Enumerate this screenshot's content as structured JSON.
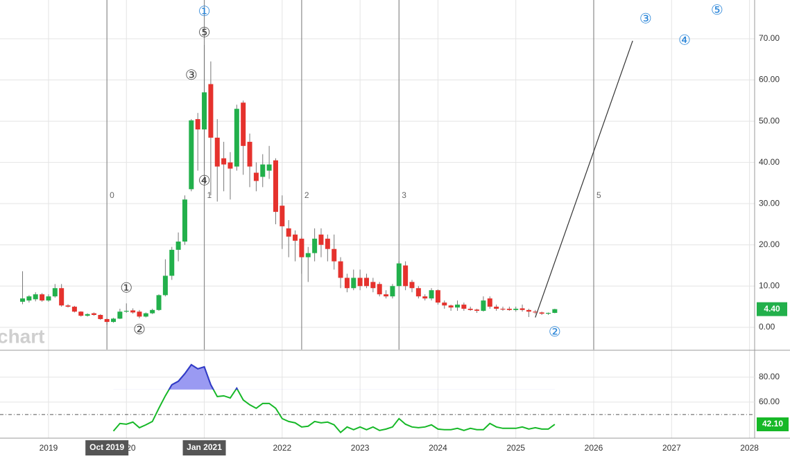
{
  "chart_data": [
    {
      "type": "candlestick",
      "x": [
        "2018-09",
        "2018-10",
        "2018-11",
        "2018-12",
        "2019-01",
        "2019-02",
        "2019-03",
        "2019-04",
        "2019-05",
        "2019-06",
        "2019-07",
        "2019-08",
        "2019-09",
        "2019-10",
        "2019-11",
        "2019-12",
        "2020-01",
        "2020-02",
        "2020-03",
        "2020-04",
        "2020-05",
        "2020-06",
        "2020-07",
        "2020-08",
        "2020-09",
        "2020-10",
        "2020-11",
        "2020-12",
        "2021-01",
        "2021-02",
        "2021-03",
        "2021-04",
        "2021-05",
        "2021-06",
        "2021-07",
        "2021-08",
        "2021-09",
        "2021-10",
        "2021-11",
        "2021-12",
        "2022-01",
        "2022-02",
        "2022-03",
        "2022-04",
        "2022-05",
        "2022-06",
        "2022-07",
        "2022-08",
        "2022-09",
        "2022-10",
        "2022-11",
        "2022-12",
        "2023-01",
        "2023-02",
        "2023-03",
        "2023-04",
        "2023-05",
        "2023-06",
        "2023-07",
        "2023-08",
        "2023-09",
        "2023-10",
        "2023-11",
        "2023-12",
        "2024-01",
        "2024-02",
        "2024-03",
        "2024-04",
        "2024-05",
        "2024-06",
        "2024-07",
        "2024-08",
        "2024-09",
        "2024-10",
        "2024-11",
        "2024-12",
        "2025-01",
        "2025-02",
        "2025-03",
        "2025-04",
        "2025-05",
        "2025-06",
        "2025-07"
      ],
      "open": [
        6.2,
        6.5,
        6.8,
        8.0,
        6.5,
        7.5,
        9.5,
        5.3,
        5.0,
        3.8,
        2.8,
        3.4,
        3.0,
        2.0,
        1.3,
        2.1,
        3.8,
        4.1,
        3.8,
        2.6,
        3.4,
        4.2,
        7.8,
        12.5,
        18.8,
        20.8,
        33.5,
        50.5,
        48.0,
        59.0,
        46.0,
        41.0,
        40.0,
        39.0,
        54.5,
        45.0,
        37.5,
        36.5,
        38.0,
        40.5,
        29.5,
        24.0,
        22.5,
        21.5,
        17.0,
        18.0,
        22.5,
        21.5,
        19.0,
        16.0,
        12.0,
        9.5,
        12.0,
        12.0,
        11.0,
        10.5,
        8.0,
        7.5,
        10.0,
        15.0,
        11.0,
        9.5,
        7.5,
        7.0,
        9.0,
        6.0,
        5.3,
        4.8,
        5.5,
        4.5,
        4.3,
        4.0,
        7.0,
        5.0,
        4.5,
        4.5,
        4.2,
        4.6,
        4.2,
        3.8,
        3.6,
        3.3,
        3.5
      ],
      "high": [
        13.6,
        7.8,
        8.5,
        8.3,
        8.0,
        10.5,
        10.5,
        5.6,
        5.2,
        3.9,
        3.4,
        3.6,
        3.2,
        2.2,
        2.3,
        4.5,
        5.8,
        4.6,
        4.2,
        3.6,
        4.5,
        8.0,
        16.5,
        19.5,
        23.0,
        32.0,
        50.5,
        52.0,
        68.5,
        64.5,
        50.5,
        45.0,
        42.5,
        54.0,
        55.0,
        47.0,
        40.0,
        42.0,
        44.0,
        41.0,
        32.0,
        26.0,
        23.5,
        22.0,
        19.5,
        24.0,
        24.0,
        22.5,
        22.5,
        17.0,
        13.0,
        14.0,
        14.0,
        13.0,
        12.0,
        11.0,
        9.0,
        10.5,
        16.0,
        16.0,
        11.5,
        10.0,
        8.0,
        9.5,
        9.2,
        6.5,
        5.5,
        6.5,
        6.0,
        5.0,
        4.5,
        7.5,
        7.5,
        5.5,
        5.0,
        5.0,
        5.0,
        5.5,
        4.5,
        4.2,
        3.8,
        3.6,
        4.5
      ],
      "low": [
        5.6,
        6.0,
        6.3,
        6.2,
        6.2,
        7.2,
        5.0,
        4.8,
        3.6,
        2.6,
        2.6,
        2.8,
        1.8,
        0.6,
        1.1,
        2.0,
        3.5,
        3.3,
        2.2,
        2.4,
        3.2,
        4.0,
        7.5,
        11.5,
        16.0,
        20.0,
        33.0,
        38.0,
        38.0,
        32.0,
        30.5,
        33.0,
        31.0,
        38.0,
        37.0,
        34.0,
        33.0,
        34.0,
        36.0,
        25.0,
        19.0,
        17.0,
        16.0,
        13.0,
        11.0,
        16.0,
        17.0,
        16.0,
        14.0,
        9.5,
        8.5,
        9.0,
        9.0,
        9.5,
        8.5,
        7.5,
        7.0,
        7.0,
        10.0,
        9.0,
        8.5,
        7.0,
        6.5,
        6.5,
        5.5,
        4.5,
        4.0,
        4.0,
        4.0,
        4.0,
        3.5,
        3.8,
        4.5,
        4.0,
        4.0,
        4.0,
        3.8,
        3.8,
        2.5,
        3.2,
        3.0,
        3.0,
        3.4
      ],
      "close": [
        7.0,
        7.5,
        8.0,
        6.5,
        7.5,
        9.5,
        5.3,
        5.0,
        3.8,
        2.8,
        3.2,
        3.0,
        2.0,
        1.3,
        2.1,
        3.8,
        4.0,
        3.6,
        2.6,
        3.4,
        4.2,
        7.8,
        12.5,
        18.8,
        20.8,
        31.0,
        50.2,
        48.0,
        57.0,
        46.0,
        39.0,
        39.5,
        38.5,
        53.0,
        44.0,
        39.0,
        35.5,
        39.5,
        39.5,
        28.0,
        24.5,
        22.0,
        21.0,
        17.0,
        18.0,
        21.5,
        20.0,
        19.0,
        16.0,
        12.0,
        9.5,
        12.0,
        10.0,
        10.0,
        9.5,
        8.0,
        7.5,
        10.0,
        15.5,
        10.0,
        9.5,
        7.5,
        7.0,
        9.0,
        6.0,
        5.3,
        4.8,
        5.5,
        4.5,
        4.2,
        4.0,
        6.5,
        5.0,
        4.5,
        4.3,
        4.2,
        4.5,
        4.2,
        3.8,
        3.6,
        3.3,
        3.5,
        4.4
      ],
      "up_color": "#22b04b",
      "down_color": "#e5322d",
      "last_label": "4.40",
      "xlim": [
        2018.377,
        2028.066
      ],
      "xticks": [
        2019,
        2020,
        2021,
        2022,
        2023,
        2024,
        2025,
        2026,
        2027,
        2028
      ],
      "ylim": [
        -5.4,
        79.4
      ],
      "yticks": [
        {
          "value": 0,
          "label": "0.00"
        },
        {
          "value": 10,
          "label": "10.00"
        },
        {
          "value": 20,
          "label": "20.00"
        },
        {
          "value": 30,
          "label": "30.00"
        },
        {
          "value": 40,
          "label": "40.00"
        },
        {
          "value": 50,
          "label": "50.00"
        },
        {
          "value": 60,
          "label": "60.00"
        },
        {
          "value": 70,
          "label": "70.00"
        }
      ],
      "grid": true,
      "wave_lines": [
        {
          "x": "2019-10",
          "label": "0"
        },
        {
          "x": "2021-01",
          "label": "1"
        },
        {
          "x": "2022-04",
          "label": "2"
        },
        {
          "x": "2023-07",
          "label": "3"
        },
        {
          "x": "2026-01",
          "label": "5"
        }
      ],
      "trend_line": {
        "x": [
          "2025-04",
          "2026-07"
        ],
        "y": [
          2.4,
          69.5
        ]
      },
      "annotations": [
        {
          "text": "①",
          "x": "2020-01",
          "y": 9.4,
          "color": "#444444"
        },
        {
          "text": "②",
          "x": "2020-03",
          "y": -0.7,
          "color": "#444444"
        },
        {
          "text": "③",
          "x": "2020-11",
          "y": 61,
          "color": "#444444"
        },
        {
          "text": "④",
          "x": "2021-01",
          "y": 35.4,
          "color": "#444444"
        },
        {
          "text": "⑤",
          "x": "2021-01",
          "y": 71.3,
          "color": "#444444"
        },
        {
          "text": "①",
          "x": "2021-01",
          "y": 76.5,
          "color": "#2a85d8"
        },
        {
          "text": "②",
          "x": "2025-07",
          "y": -1.3,
          "color": "#2a85d8"
        },
        {
          "text": "③",
          "x": "2026-09",
          "y": 74.7,
          "color": "#2a85d8"
        },
        {
          "text": "④",
          "x": "2027-03",
          "y": 69.5,
          "color": "#2a85d8"
        },
        {
          "text": "⑤",
          "x": "2027-08",
          "y": 76.8,
          "color": "#2a85d8"
        }
      ],
      "x_highlights": [
        {
          "x": "2019-10",
          "label": "Oct 2019"
        },
        {
          "x": "2021-01",
          "label": "Jan 2021"
        }
      ],
      "watermark": "chart"
    },
    {
      "type": "line",
      "x": [
        "2019-11",
        "2019-12",
        "2020-01",
        "2020-02",
        "2020-03",
        "2020-04",
        "2020-05",
        "2020-06",
        "2020-07",
        "2020-08",
        "2020-09",
        "2020-10",
        "2020-11",
        "2020-12",
        "2021-01",
        "2021-02",
        "2021-03",
        "2021-04",
        "2021-05",
        "2021-06",
        "2021-07",
        "2021-08",
        "2021-09",
        "2021-10",
        "2021-11",
        "2021-12",
        "2022-01",
        "2022-02",
        "2022-03",
        "2022-04",
        "2022-05",
        "2022-06",
        "2022-07",
        "2022-08",
        "2022-09",
        "2022-10",
        "2022-11",
        "2022-12",
        "2023-01",
        "2023-02",
        "2023-03",
        "2023-04",
        "2023-05",
        "2023-06",
        "2023-07",
        "2023-08",
        "2023-09",
        "2023-10",
        "2023-11",
        "2023-12",
        "2024-01",
        "2024-02",
        "2024-03",
        "2024-04",
        "2024-05",
        "2024-06",
        "2024-07",
        "2024-08",
        "2024-09",
        "2024-10",
        "2024-11",
        "2024-12",
        "2025-01",
        "2025-02",
        "2025-03",
        "2025-04",
        "2025-05",
        "2025-06",
        "2025-07"
      ],
      "values": [
        36.7,
        42.8,
        42.2,
        43.9,
        39.4,
        41.7,
        44.4,
        55,
        65,
        73.9,
        76.7,
        82.8,
        90,
        86.7,
        88.3,
        73.9,
        64.4,
        65,
        63.3,
        71.1,
        61.7,
        57.8,
        55,
        58.9,
        58.9,
        55,
        46.7,
        44.4,
        43.3,
        40,
        40.6,
        44.4,
        43.3,
        43.9,
        41.7,
        35.6,
        40,
        37.8,
        40,
        37.8,
        40,
        37.2,
        38.3,
        40,
        46.7,
        42.2,
        40,
        39.4,
        40,
        41.7,
        38.3,
        37.8,
        37.8,
        38.9,
        37.2,
        38.9,
        37.8,
        37.8,
        42.8,
        40,
        38.9,
        38.9,
        38.9,
        40,
        38.3,
        39.4,
        38.3,
        38.3,
        42.1
      ],
      "color": "#16b827",
      "overbought": 70,
      "overbought_color": "#3535d0",
      "overbought_fill": "#9a9af2",
      "reference_line": 50,
      "last_label": "42.10",
      "ylim": [
        31,
        100.5
      ],
      "yticks": [
        {
          "value": 60,
          "label": "60.00"
        },
        {
          "value": 80,
          "label": "80.00"
        }
      ]
    }
  ]
}
